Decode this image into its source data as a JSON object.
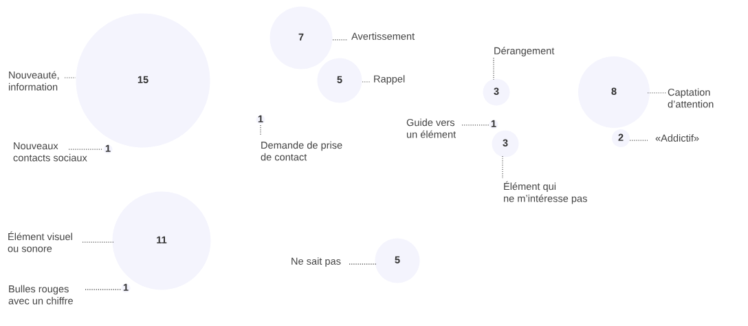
{
  "chart_data": {
    "type": "other",
    "categories": [
      "Nouveauté,\ninformation",
      "Nouveaux\ncontacts sociaux",
      "Élément visuel\nou sonore",
      "Bulles rouges\navec un chiffre",
      "Avertissement",
      "Rappel",
      "Demande de prise\nde contact",
      "Ne sait pas",
      "Dérangement",
      "Guide vers\nun élément",
      "Élément qui\nne m’intéresse pas",
      "Captation\nd’attention",
      "«Addictif»"
    ],
    "values": [
      15,
      1,
      11,
      1,
      7,
      5,
      1,
      5,
      3,
      1,
      3,
      8,
      2
    ],
    "color": "#f4f4fd",
    "data_labels": true
  }
}
